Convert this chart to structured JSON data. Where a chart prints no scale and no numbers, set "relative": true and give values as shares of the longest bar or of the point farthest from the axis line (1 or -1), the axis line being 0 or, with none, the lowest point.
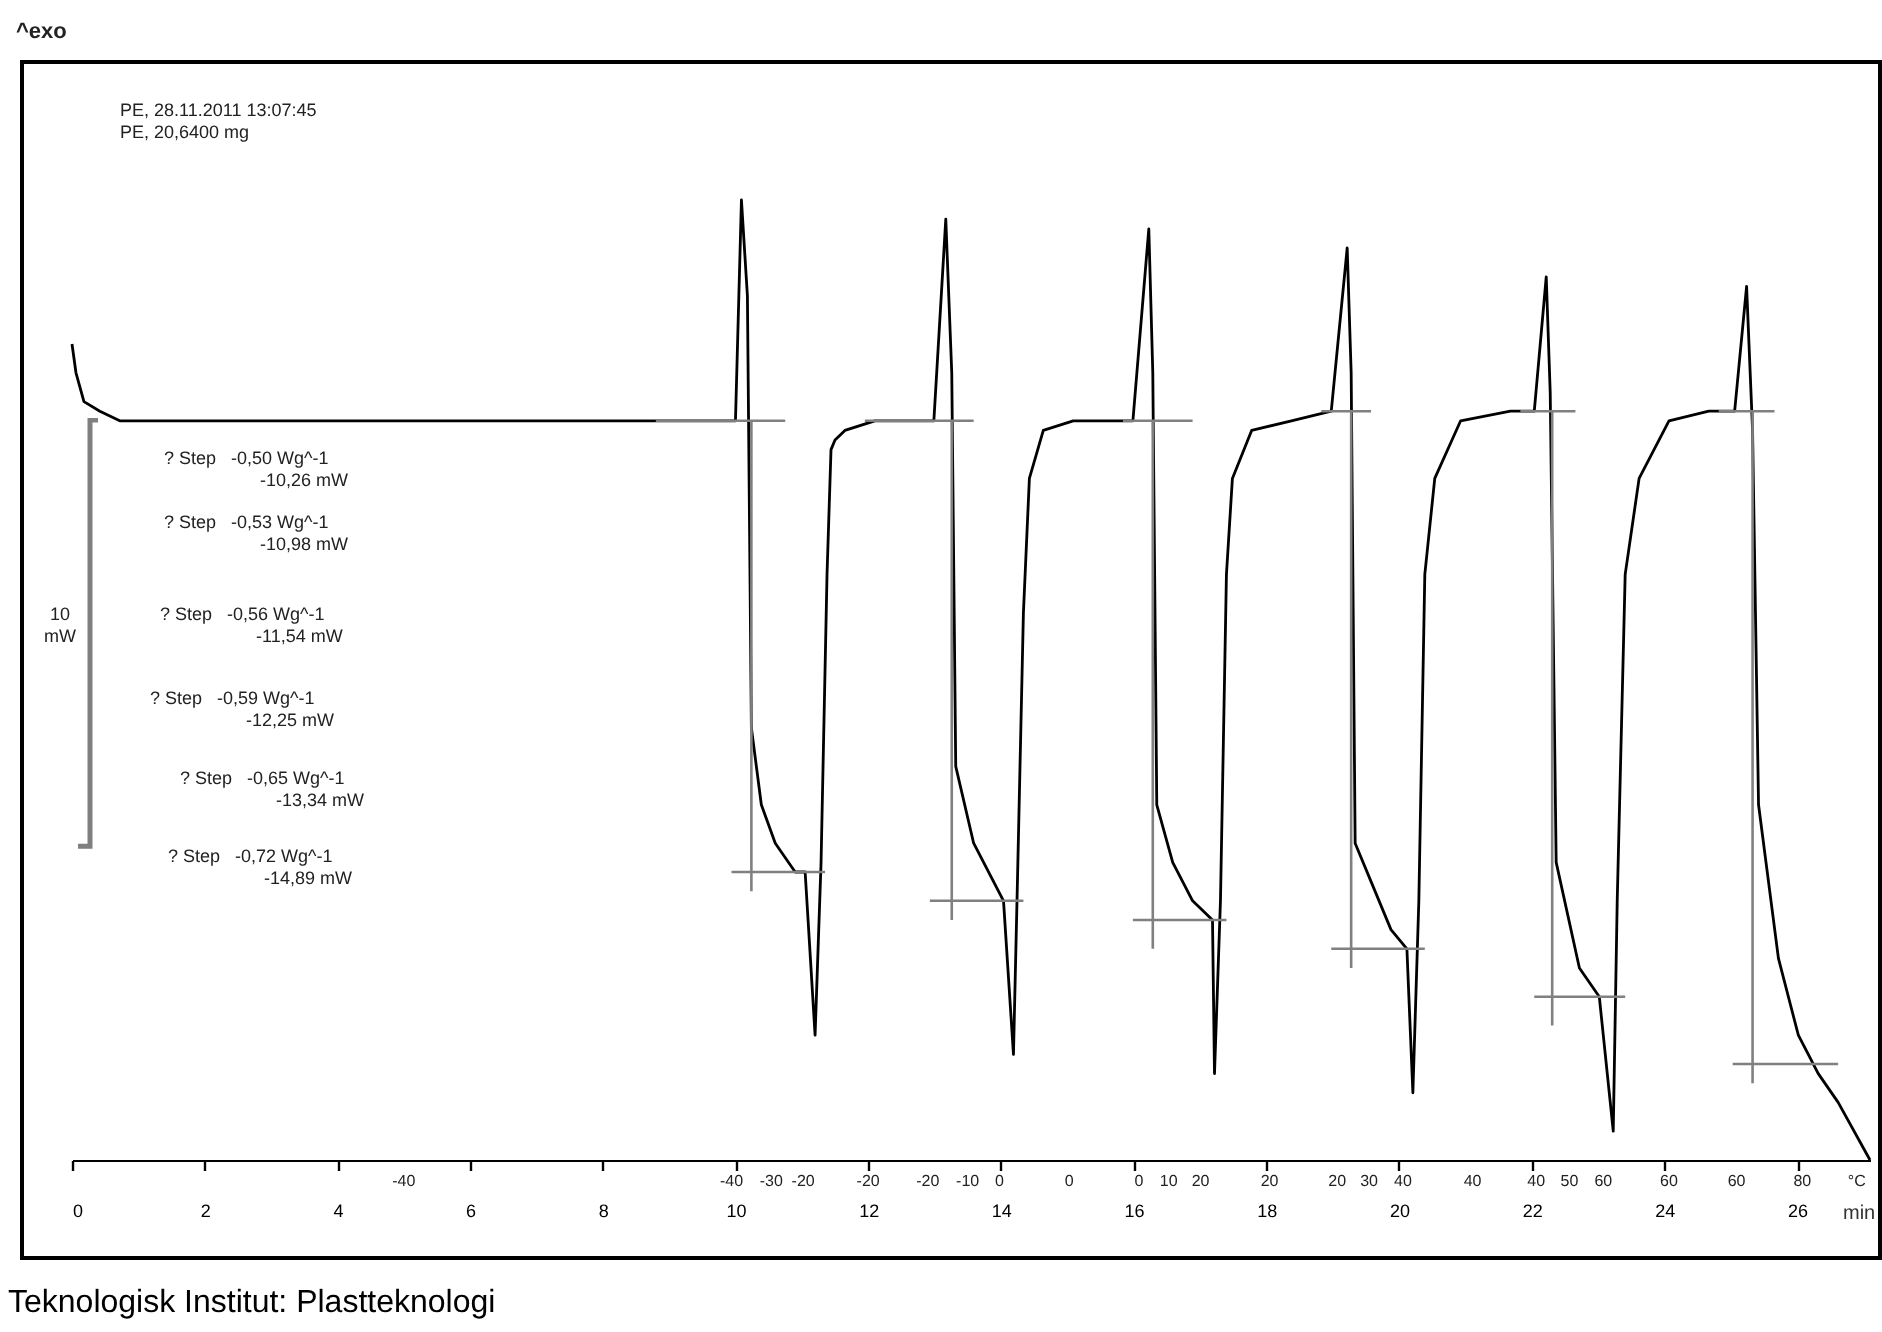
{
  "chart_data": {
    "type": "line",
    "relative": true,
    "xlabel": "min",
    "xlim": [
      0,
      27.1
    ],
    "xticks": [
      0,
      2,
      4,
      6,
      8,
      10,
      12,
      14,
      16,
      18,
      20,
      22,
      24,
      26
    ],
    "line_style": "solid",
    "series": [
      {
        "color": "#000000",
        "x": [
          0.0,
          0.06,
          0.18,
          0.42,
          0.72,
          10.0,
          10.09,
          10.18,
          10.24,
          10.39,
          10.6,
          10.9,
          11.05,
          11.2,
          11.29,
          11.38,
          11.44,
          11.5,
          11.65,
          12.1,
          12.99,
          13.17,
          13.26,
          13.32,
          13.59,
          13.89,
          14.04,
          14.19,
          14.25,
          14.34,
          14.43,
          14.64,
          15.09,
          15.99,
          16.23,
          16.29,
          16.35,
          16.59,
          16.89,
          17.19,
          17.22,
          17.31,
          17.4,
          17.49,
          17.78,
          18.38,
          18.98,
          19.22,
          19.28,
          19.34,
          19.58,
          19.88,
          20.12,
          20.21,
          20.3,
          20.39,
          20.54,
          20.93,
          21.68,
          22.04,
          22.22,
          22.28,
          22.37,
          22.72,
          23.02,
          23.23,
          23.29,
          23.41,
          23.62,
          24.07,
          24.67,
          25.06,
          25.24,
          25.33,
          25.42,
          25.72,
          26.02,
          26.32,
          26.62,
          27.1
        ],
        "values": [
          0.85,
          0.82,
          0.79,
          0.78,
          0.77,
          0.77,
          1.0,
          0.9,
          0.45,
          0.37,
          0.33,
          0.3,
          0.3,
          0.13,
          0.31,
          0.61,
          0.74,
          0.75,
          0.76,
          0.77,
          0.77,
          0.98,
          0.82,
          0.41,
          0.33,
          0.29,
          0.27,
          0.11,
          0.29,
          0.57,
          0.71,
          0.76,
          0.77,
          0.77,
          0.97,
          0.82,
          0.37,
          0.31,
          0.27,
          0.25,
          0.09,
          0.27,
          0.61,
          0.71,
          0.76,
          0.77,
          0.78,
          0.95,
          0.82,
          0.33,
          0.29,
          0.24,
          0.22,
          0.07,
          0.27,
          0.61,
          0.71,
          0.77,
          0.78,
          0.78,
          0.92,
          0.8,
          0.31,
          0.2,
          0.17,
          0.03,
          0.27,
          0.61,
          0.71,
          0.77,
          0.78,
          0.78,
          0.91,
          0.76,
          0.37,
          0.21,
          0.13,
          0.09,
          0.06,
          0.0
        ]
      },
      {
        "color": "#808080",
        "x": [
          8.8,
          10.75,
          null,
          11.95,
          13.59,
          null,
          15.84,
          16.89,
          null,
          18.83,
          19.58,
          null,
          21.83,
          22.66,
          null,
          24.82,
          25.66,
          null,
          10.24,
          10.24,
          null,
          13.26,
          13.26,
          null,
          16.29,
          16.29,
          null,
          19.28,
          19.28,
          null,
          22.31,
          22.31,
          null,
          25.33,
          25.33,
          null,
          9.94,
          11.35,
          null,
          12.93,
          14.34,
          null,
          15.99,
          17.4,
          null,
          18.98,
          20.39,
          null,
          22.04,
          23.41,
          null,
          25.03,
          26.62
        ],
        "values": [
          0.77,
          0.77,
          null,
          0.77,
          0.77,
          null,
          0.77,
          0.77,
          null,
          0.78,
          0.78,
          null,
          0.78,
          0.78,
          null,
          0.78,
          0.78,
          null,
          0.77,
          0.28,
          null,
          0.77,
          0.25,
          null,
          0.77,
          0.22,
          null,
          0.78,
          0.2,
          null,
          0.78,
          0.14,
          null,
          0.78,
          0.08,
          null,
          0.3,
          0.3,
          null,
          0.27,
          0.27,
          null,
          0.25,
          0.25,
          null,
          0.22,
          0.22,
          null,
          0.17,
          0.17,
          null,
          0.1,
          0.1
        ]
      }
    ],
    "annotations": [
      "^exo",
      "PE, 28.11.2011 13:07:45",
      "PE, 20,6400 mg",
      "? Step   -0,50 Wg^-1\n-10,26 mW",
      "? Step   -0,53 Wg^-1\n-10,98 mW",
      "? Step   -0,56 Wg^-1\n-11,54 mW",
      "? Step   -0,59 Wg^-1\n-12,25 mW",
      "? Step   -0,65 Wg^-1\n-13,34 mW",
      "? Step   -0,72 Wg^-1\n-14,89 mW",
      "10\nmW",
      "Teknologisk Institut: Plastteknologi",
      "-40",
      "-40",
      "-30",
      "-20",
      "-20",
      "-20",
      "-10",
      "0",
      "0",
      "0",
      "10",
      "20",
      "20",
      "20",
      "30",
      "40",
      "40",
      "40",
      "50",
      "60",
      "60",
      "60",
      "80",
      "°C"
    ]
  }
}
